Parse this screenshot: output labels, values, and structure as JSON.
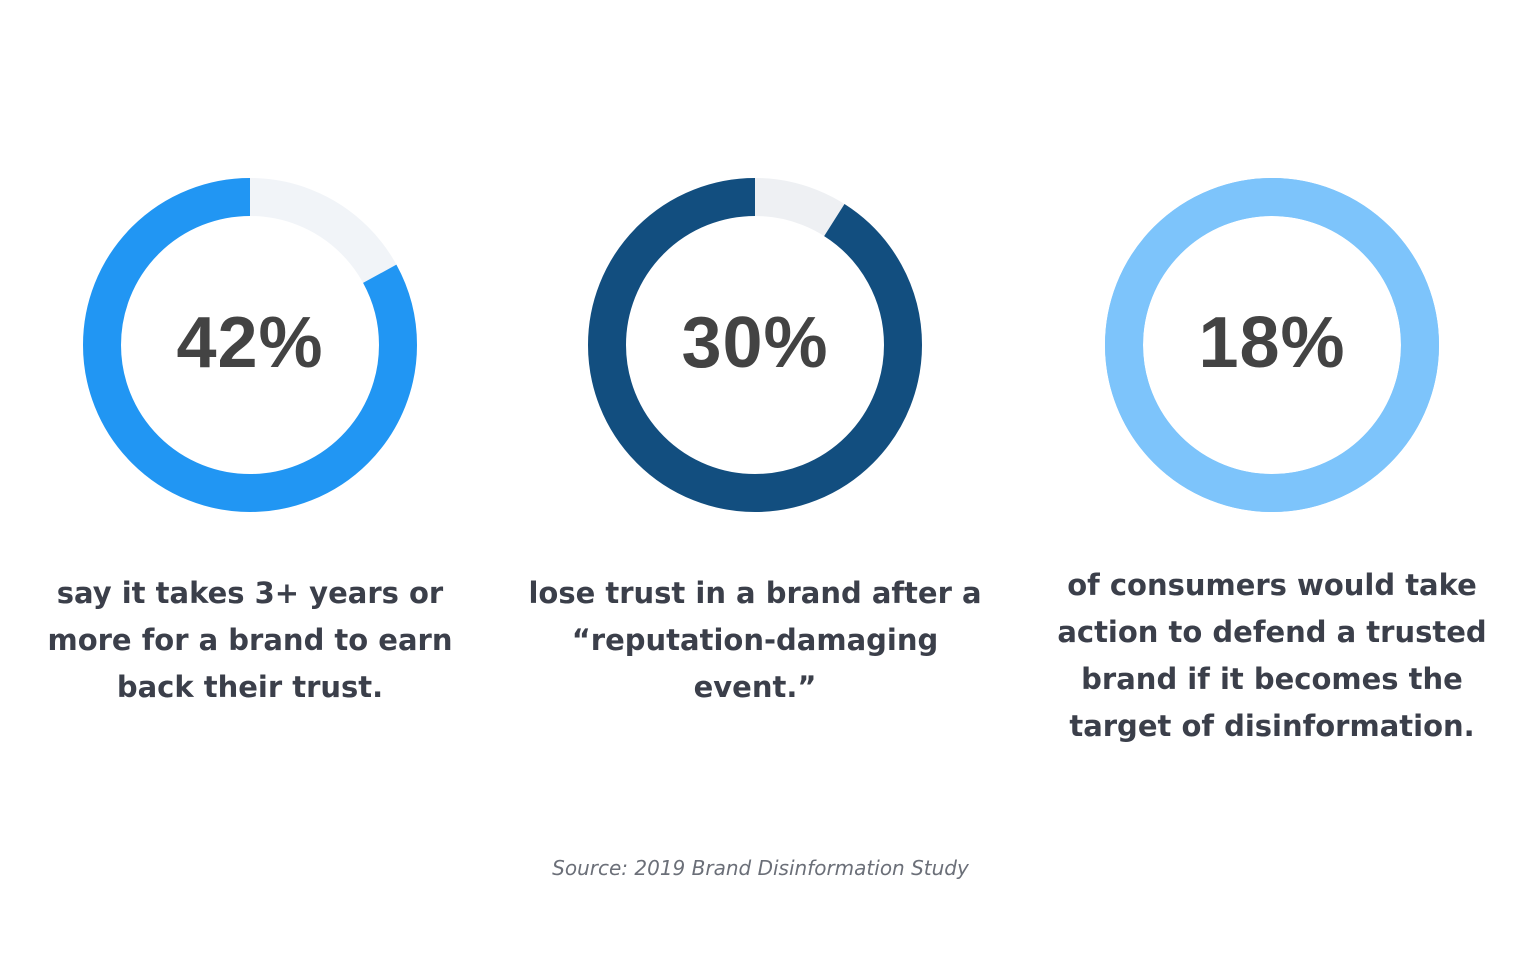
{
  "chart_data": [
    {
      "type": "pie",
      "value": 42,
      "label": "42%",
      "caption": "say it takes 3+ years or more for a brand to earn back their trust.",
      "color": "#2196f3",
      "track_color": "#f1f4f8"
    },
    {
      "type": "pie",
      "value": 30,
      "label": "30%",
      "caption": "lose trust in a brand after a “reputation-damaging event.”",
      "color": "#124e7f",
      "track_color": "#eef0f3"
    },
    {
      "type": "pie",
      "value": 18,
      "label": "18%",
      "caption": "of consumers would take action to defend a trusted brand if it becomes the target of disinformation.",
      "color": "#7dc4fb",
      "track_color": "#7dc4fb"
    }
  ],
  "source": "Source: 2019 Brand Disinformation Study",
  "ring_gap_fraction": [
    0.17,
    0.09,
    0
  ]
}
